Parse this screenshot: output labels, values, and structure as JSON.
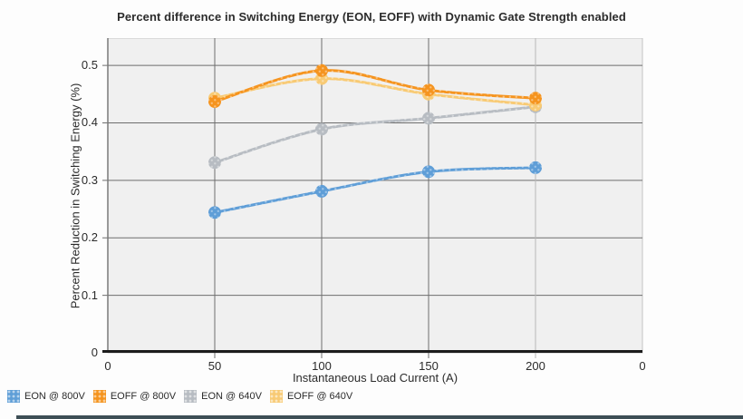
{
  "chart_data": {
    "type": "line",
    "title": "Percent difference in Switching Energy (EON, EOFF) with Dynamic Gate Strength enabled",
    "xlabel": "Instantaneous Load Current (A)",
    "ylabel": "Percent Reduction in Switching Energy (%)",
    "x": [
      50,
      100,
      150,
      200
    ],
    "x_tick_labels": [
      "0",
      "50",
      "100",
      "150",
      "200",
      "0"
    ],
    "y_tick_labels": [
      "0",
      "0.1",
      "0.2",
      "0.3",
      "0.4",
      "0.5"
    ],
    "y_tick_values": [
      0,
      0.1,
      0.2,
      0.3,
      0.4,
      0.5
    ],
    "ylim": [
      0,
      0.5475
    ],
    "grid": true,
    "legend_position": "bottom-left",
    "marker": "circle-pattern-dots",
    "series": [
      {
        "name": "EON @ 800V",
        "color": "#5f9ed7",
        "values": [
          0.244,
          0.281,
          0.315,
          0.322
        ]
      },
      {
        "name": "EOFF @ 800V",
        "color": "#f5941f",
        "values": [
          0.437,
          0.491,
          0.457,
          0.443
        ]
      },
      {
        "name": "EON @ 640V",
        "color": "#b7bcc2",
        "values": [
          0.331,
          0.389,
          0.408,
          0.428
        ]
      },
      {
        "name": "EOFF @ 640V",
        "color": "#f8ca74",
        "values": [
          0.443,
          0.477,
          0.45,
          0.431
        ]
      }
    ],
    "z_order": [
      2,
      3,
      1,
      0
    ]
  },
  "style": {
    "page_bg": "#fdfdfd",
    "plot_bg": "#f0f0f0",
    "plot_border": "#c4c4c4",
    "grid_color": "#6e6e6e",
    "x_gridline_colors": [
      "none",
      "#6e6e6e",
      "#6e6e6e",
      "#6e6e6e",
      "#b8b8b8",
      "none"
    ],
    "axis_color": "#7a7a7a",
    "baseline_color": "#1c1c1c",
    "text_color": "#2b2b2b",
    "bottom_bar_color": "#3d4e55"
  }
}
